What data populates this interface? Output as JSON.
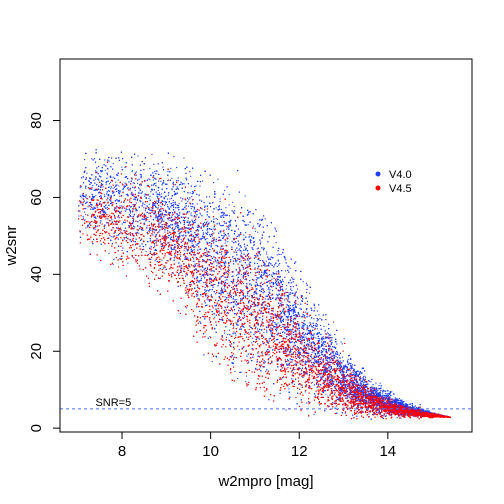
{
  "chart_data": {
    "type": "scatter",
    "xlabel": "w2mpro [mag]",
    "ylabel": "w2snr",
    "xlim": [
      6.6,
      15.9
    ],
    "ylim": [
      -1,
      96
    ],
    "xticks": [
      8,
      10,
      12,
      14
    ],
    "yticks": [
      0,
      20,
      40,
      60,
      80
    ],
    "grid": false,
    "legend_position": "right",
    "colors": {
      "v40": "#1f3fff",
      "v45": "#ff0000",
      "threshold": "#4a6cff"
    },
    "series": [
      {
        "name": "V4.0",
        "color": "#1f3fff",
        "description_points": [
          [
            7.0,
            48
          ],
          [
            7.0,
            68
          ],
          [
            7.5,
            45
          ],
          [
            7.5,
            70
          ],
          [
            8.0,
            42
          ],
          [
            8.0,
            70
          ],
          [
            8.5,
            40
          ],
          [
            8.5,
            68
          ],
          [
            9.0,
            38
          ],
          [
            9.0,
            68
          ],
          [
            9.5,
            30
          ],
          [
            9.5,
            66
          ],
          [
            10.0,
            15
          ],
          [
            10.0,
            63
          ],
          [
            10.5,
            10
          ],
          [
            10.5,
            60
          ],
          [
            11.0,
            8
          ],
          [
            11.0,
            55
          ],
          [
            11.5,
            6
          ],
          [
            11.5,
            48
          ],
          [
            12.0,
            5
          ],
          [
            12.0,
            38
          ],
          [
            12.5,
            4
          ],
          [
            12.5,
            28
          ],
          [
            13.0,
            3.5
          ],
          [
            13.0,
            20
          ],
          [
            13.5,
            3
          ],
          [
            13.5,
            13
          ],
          [
            14.0,
            3
          ],
          [
            14.0,
            9
          ],
          [
            14.5,
            3
          ],
          [
            14.5,
            6
          ],
          [
            15.0,
            3
          ],
          [
            15.0,
            4
          ],
          [
            15.4,
            3
          ]
        ]
      },
      {
        "name": "V4.5",
        "color": "#ff0000",
        "description_points": [
          [
            7.0,
            48
          ],
          [
            7.0,
            66
          ],
          [
            8.0,
            40
          ],
          [
            8.0,
            68
          ],
          [
            9.0,
            35
          ],
          [
            9.0,
            65
          ],
          [
            10.0,
            18
          ],
          [
            10.0,
            60
          ],
          [
            10.5,
            12
          ],
          [
            10.5,
            55
          ],
          [
            11.0,
            9
          ],
          [
            11.0,
            48
          ],
          [
            11.5,
            7
          ],
          [
            11.5,
            42
          ],
          [
            12.0,
            5
          ],
          [
            12.0,
            34
          ],
          [
            12.5,
            4
          ],
          [
            12.5,
            25
          ],
          [
            13.0,
            3.5
          ],
          [
            13.0,
            18
          ],
          [
            13.5,
            3
          ],
          [
            13.5,
            12
          ],
          [
            14.0,
            3
          ],
          [
            14.0,
            8
          ],
          [
            14.5,
            3
          ],
          [
            14.5,
            5.5
          ],
          [
            15.0,
            3
          ],
          [
            15.0,
            4
          ],
          [
            15.4,
            3
          ]
        ]
      }
    ],
    "reference_line": {
      "y": 5,
      "label": "SNR=5",
      "style": "dashed"
    }
  }
}
